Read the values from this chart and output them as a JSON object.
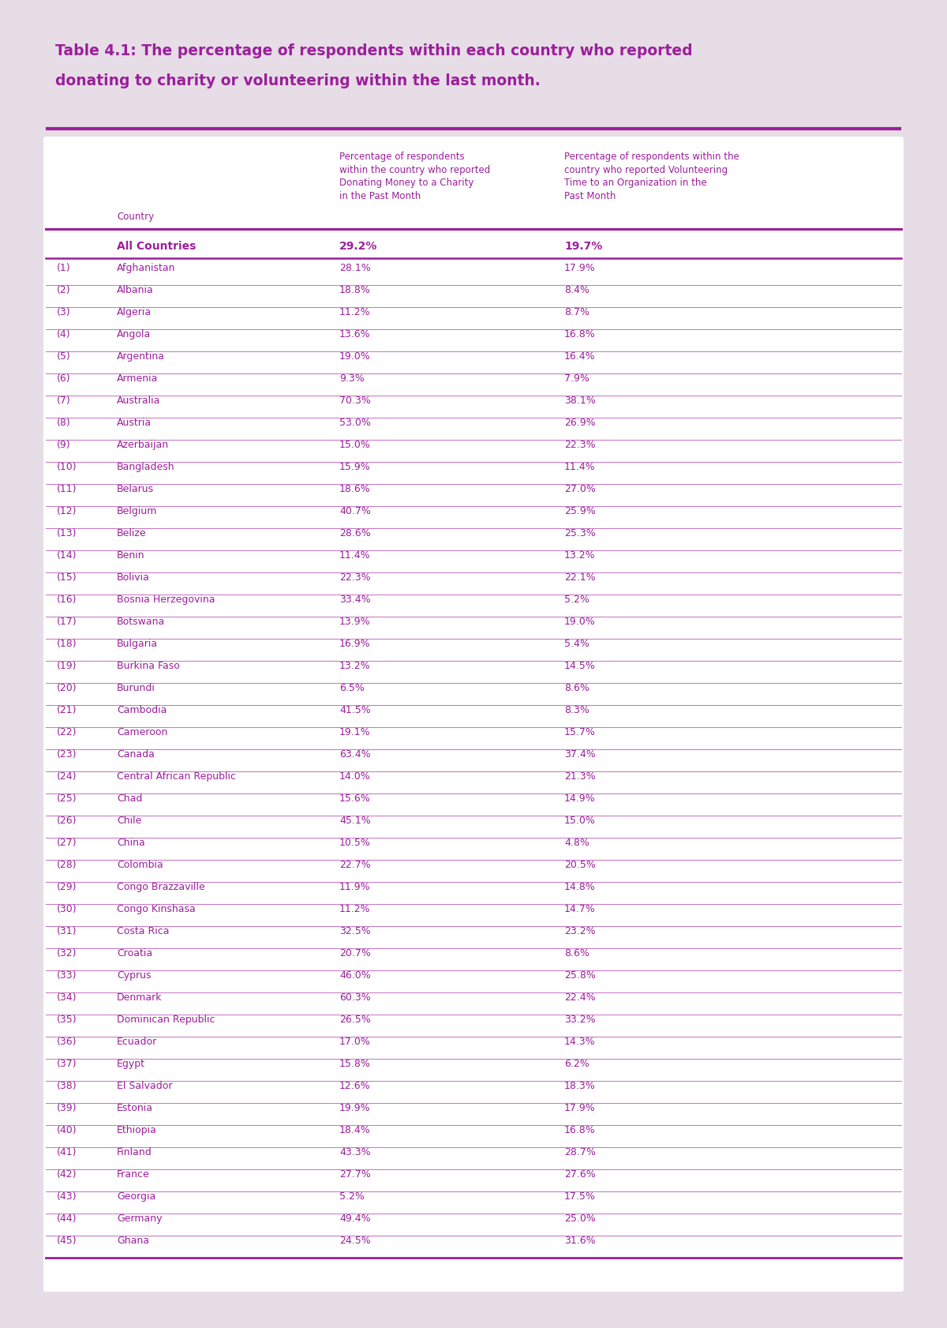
{
  "title_line1": "Table 4.1: The percentage of respondents within each country who reported",
  "title_line2": "donating to charity or volunteering within the last month.",
  "col2_header_lines": [
    "Percentage of respondents",
    "within the country who reported",
    "Donating Money to a Charity",
    "in the Past Month"
  ],
  "col3_header_lines": [
    "Percentage of respondents within the",
    "country who reported Volunteering",
    "Time to an Organization in the",
    "Past Month"
  ],
  "col1_header": "Country",
  "summary_row": [
    "All Countries",
    "29.2%",
    "19.7%"
  ],
  "rows": [
    [
      "(1)",
      "Afghanistan",
      "28.1%",
      "17.9%"
    ],
    [
      "(2)",
      "Albania",
      "18.8%",
      "8.4%"
    ],
    [
      "(3)",
      "Algeria",
      "11.2%",
      "8.7%"
    ],
    [
      "(4)",
      "Angola",
      "13.6%",
      "16.8%"
    ],
    [
      "(5)",
      "Argentina",
      "19.0%",
      "16.4%"
    ],
    [
      "(6)",
      "Armenia",
      "9.3%",
      "7.9%"
    ],
    [
      "(7)",
      "Australia",
      "70.3%",
      "38.1%"
    ],
    [
      "(8)",
      "Austria",
      "53.0%",
      "26.9%"
    ],
    [
      "(9)",
      "Azerbaijan",
      "15.0%",
      "22.3%"
    ],
    [
      "(10)",
      "Bangladesh",
      "15.9%",
      "11.4%"
    ],
    [
      "(11)",
      "Belarus",
      "18.6%",
      "27.0%"
    ],
    [
      "(12)",
      "Belgium",
      "40.7%",
      "25.9%"
    ],
    [
      "(13)",
      "Belize",
      "28.6%",
      "25.3%"
    ],
    [
      "(14)",
      "Benin",
      "11.4%",
      "13.2%"
    ],
    [
      "(15)",
      "Bolivia",
      "22.3%",
      "22.1%"
    ],
    [
      "(16)",
      "Bosnia Herzegovina",
      "33.4%",
      "5.2%"
    ],
    [
      "(17)",
      "Botswana",
      "13.9%",
      "19.0%"
    ],
    [
      "(18)",
      "Bulgaria",
      "16.9%",
      "5.4%"
    ],
    [
      "(19)",
      "Burkina Faso",
      "13.2%",
      "14.5%"
    ],
    [
      "(20)",
      "Burundi",
      "6.5%",
      "8.6%"
    ],
    [
      "(21)",
      "Cambodia",
      "41.5%",
      "8.3%"
    ],
    [
      "(22)",
      "Cameroon",
      "19.1%",
      "15.7%"
    ],
    [
      "(23)",
      "Canada",
      "63.4%",
      "37.4%"
    ],
    [
      "(24)",
      "Central African Republic",
      "14.0%",
      "21.3%"
    ],
    [
      "(25)",
      "Chad",
      "15.6%",
      "14.9%"
    ],
    [
      "(26)",
      "Chile",
      "45.1%",
      "15.0%"
    ],
    [
      "(27)",
      "China",
      "10.5%",
      "4.8%"
    ],
    [
      "(28)",
      "Colombia",
      "22.7%",
      "20.5%"
    ],
    [
      "(29)",
      "Congo Brazzaville",
      "11.9%",
      "14.8%"
    ],
    [
      "(30)",
      "Congo Kinshasa",
      "11.2%",
      "14.7%"
    ],
    [
      "(31)",
      "Costa Rica",
      "32.5%",
      "23.2%"
    ],
    [
      "(32)",
      "Croatia",
      "20.7%",
      "8.6%"
    ],
    [
      "(33)",
      "Cyprus",
      "46.0%",
      "25.8%"
    ],
    [
      "(34)",
      "Denmark",
      "60.3%",
      "22.4%"
    ],
    [
      "(35)",
      "Dominican Republic",
      "26.5%",
      "33.2%"
    ],
    [
      "(36)",
      "Ecuador",
      "17.0%",
      "14.3%"
    ],
    [
      "(37)",
      "Egypt",
      "15.8%",
      "6.2%"
    ],
    [
      "(38)",
      "El Salvador",
      "12.6%",
      "18.3%"
    ],
    [
      "(39)",
      "Estonia",
      "19.9%",
      "17.9%"
    ],
    [
      "(40)",
      "Ethiopia",
      "18.4%",
      "16.8%"
    ],
    [
      "(41)",
      "Finland",
      "43.3%",
      "28.7%"
    ],
    [
      "(42)",
      "France",
      "27.7%",
      "27.6%"
    ],
    [
      "(43)",
      "Georgia",
      "5.2%",
      "17.5%"
    ],
    [
      "(44)",
      "Germany",
      "49.4%",
      "25.0%"
    ],
    [
      "(45)",
      "Ghana",
      "24.5%",
      "31.6%"
    ]
  ],
  "purple": "#9B1F9B",
  "light_purple": "#C878C8",
  "white": "#FFFFFF",
  "outer_bg": "#E6DDE6",
  "table_bg": "#F2EBF2",
  "title_fontsize": 13.5,
  "header_fontsize": 8.5,
  "row_fontsize": 9.0,
  "summary_fontsize": 10.0
}
